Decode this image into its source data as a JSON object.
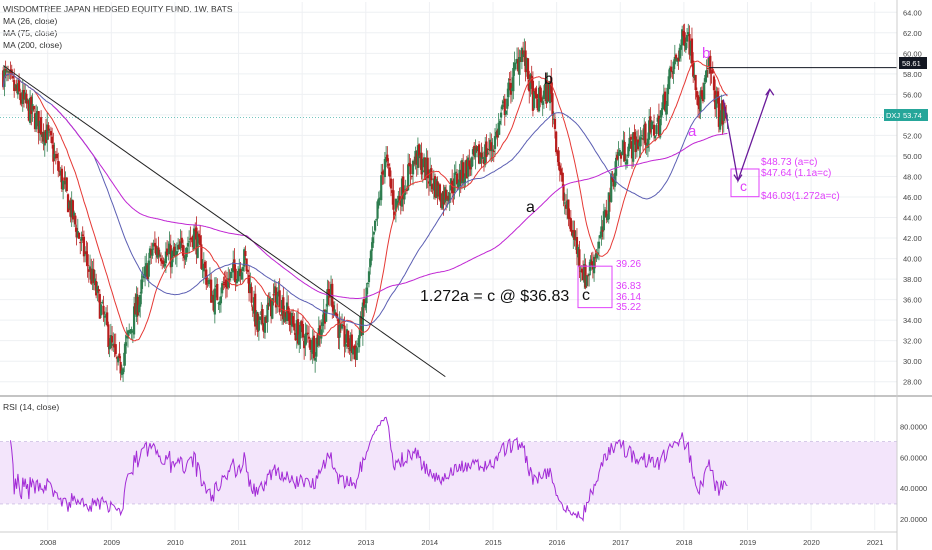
{
  "header": {
    "title": "WISDOMTREE JAPAN HEDGED EQUITY FUND, 1W, BATS",
    "ma_labels": [
      "MA (26, close)",
      "MA (75, close)",
      "MA (200, close)"
    ],
    "rsi_label": "RSI (14, close)"
  },
  "colors": {
    "up": "#2e7d4f",
    "down": "#b71c1c",
    "ma26": "#e53935",
    "ma75": "#5c5fb3",
    "ma200": "#c026d3",
    "trend": "#222222",
    "fib": "#e040fb",
    "wave": "#6a1b9a",
    "rsi": "#a22bd6",
    "rsi_band": "#f3e5fb"
  },
  "price_labels": {
    "resistance": "58.61",
    "last_ticker": "DXJ",
    "last_value": "53.74"
  },
  "annotations": {
    "main_text": "1.272a = c @ $36.83",
    "wave_b_old": "b",
    "wave_a_old": "a",
    "wave_c_old": "c",
    "wave_b_new": "b",
    "wave_a_new": "a",
    "wave_c_new": "c",
    "fib_old": [
      "39.26",
      "36.83",
      "36.14",
      "35.22"
    ],
    "fib_new": [
      "$48.73 (a=c)",
      "$47.64 (1.1a=c)",
      "$46.03(1.272a=c)"
    ]
  },
  "chart_data": [
    {
      "type": "candlestick",
      "title": "WISDOMTREE JAPAN HEDGED EQUITY FUND, 1W, BATS",
      "ylim": [
        27,
        65
      ],
      "xlim": [
        2007.25,
        2021.35
      ],
      "y_ticks": [
        "28.00",
        "30.00",
        "32.00",
        "34.00",
        "36.00",
        "38.00",
        "40.00",
        "42.00",
        "44.00",
        "46.00",
        "48.00",
        "50.00",
        "52.00",
        "54.00",
        "56.00",
        "58.00",
        "60.00",
        "62.00",
        "64.00"
      ],
      "x_ticks": [
        "2008",
        "2009",
        "2010",
        "2011",
        "2012",
        "2013",
        "2014",
        "2015",
        "2016",
        "2017",
        "2018",
        "2019",
        "2020",
        "2021"
      ],
      "key_points": [
        {
          "x": 2007.3,
          "y": 58.0
        },
        {
          "x": 2008.0,
          "y": 52.0
        },
        {
          "x": 2008.7,
          "y": 38.0
        },
        {
          "x": 2009.12,
          "y": 29.0
        },
        {
          "x": 2009.65,
          "y": 41.0
        },
        {
          "x": 2010.0,
          "y": 40.0
        },
        {
          "x": 2010.3,
          "y": 42.5
        },
        {
          "x": 2010.6,
          "y": 36.0
        },
        {
          "x": 2011.1,
          "y": 40.0
        },
        {
          "x": 2011.3,
          "y": 33.0
        },
        {
          "x": 2011.6,
          "y": 36.5
        },
        {
          "x": 2011.9,
          "y": 33.0
        },
        {
          "x": 2012.2,
          "y": 31.5
        },
        {
          "x": 2012.45,
          "y": 37.0
        },
        {
          "x": 2012.6,
          "y": 32.5
        },
        {
          "x": 2012.85,
          "y": 31.0
        },
        {
          "x": 2013.0,
          "y": 36.0
        },
        {
          "x": 2013.3,
          "y": 50.0
        },
        {
          "x": 2013.45,
          "y": 45.0
        },
        {
          "x": 2013.8,
          "y": 50.0
        },
        {
          "x": 2014.2,
          "y": 46.0
        },
        {
          "x": 2014.6,
          "y": 49.0
        },
        {
          "x": 2015.0,
          "y": 51.0
        },
        {
          "x": 2015.45,
          "y": 60.5
        },
        {
          "x": 2015.65,
          "y": 55.0
        },
        {
          "x": 2015.9,
          "y": 56.5
        },
        {
          "x": 2016.1,
          "y": 46.0
        },
        {
          "x": 2016.45,
          "y": 38.0
        },
        {
          "x": 2016.7,
          "y": 42.0
        },
        {
          "x": 2016.95,
          "y": 50.0
        },
        {
          "x": 2017.3,
          "y": 51.5
        },
        {
          "x": 2017.6,
          "y": 53.0
        },
        {
          "x": 2017.8,
          "y": 58.0
        },
        {
          "x": 2018.05,
          "y": 62.5
        },
        {
          "x": 2018.25,
          "y": 55.0
        },
        {
          "x": 2018.4,
          "y": 58.6
        },
        {
          "x": 2018.55,
          "y": 54.0
        },
        {
          "x": 2018.7,
          "y": 53.7
        }
      ],
      "trendline": [
        {
          "x": 2007.3,
          "y": 58.8
        },
        {
          "x": 2014.25,
          "y": 28.5
        }
      ],
      "resistance_line": {
        "y": 58.61,
        "x_start": 2018.4
      }
    },
    {
      "type": "line",
      "title": "RSI (14, close)",
      "ylim": [
        13,
        97
      ],
      "y_ticks": [
        "20.0000",
        "40.0000",
        "60.0000",
        "80.0000"
      ],
      "band": [
        30,
        70
      ]
    }
  ]
}
